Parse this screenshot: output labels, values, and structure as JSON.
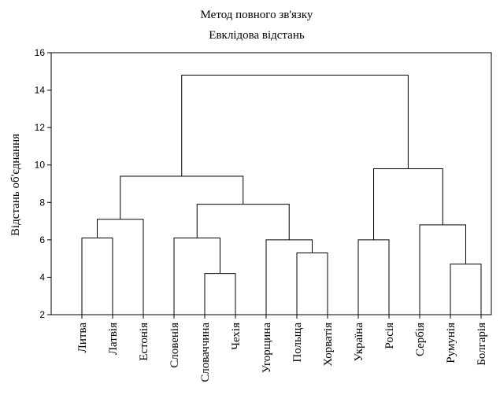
{
  "chart_data": {
    "type": "dendrogram",
    "title": "Метод повного зв'язку",
    "subtitle": "Евклідова відстань",
    "ylabel": "Відстань об'єднання",
    "xlabel": "",
    "ylim": [
      2,
      16
    ],
    "yticks": [
      "2",
      "4",
      "6",
      "8",
      "10",
      "12",
      "14",
      "16"
    ],
    "grid": false,
    "leaves": [
      "Литва",
      "Латвія",
      "Естонія",
      "Словенія",
      "Словаччина",
      "Чехія",
      "Угорщина",
      "Польща",
      "Хорватія",
      "Україна",
      "Росія",
      "Сербія",
      "Румунія",
      "Болгарія"
    ],
    "merges": [
      {
        "a": "L0",
        "b": "L1",
        "height": 6.1
      },
      {
        "a": "M0",
        "b": "L2",
        "height": 7.1
      },
      {
        "a": "L4",
        "b": "L5",
        "height": 4.2
      },
      {
        "a": "L3",
        "b": "M2",
        "height": 6.1
      },
      {
        "a": "L7",
        "b": "L8",
        "height": 5.3
      },
      {
        "a": "L6",
        "b": "M4",
        "height": 6.0
      },
      {
        "a": "M3",
        "b": "M5",
        "height": 7.9
      },
      {
        "a": "M1",
        "b": "M6",
        "height": 9.4
      },
      {
        "a": "L9",
        "b": "L10",
        "height": 6.0
      },
      {
        "a": "L12",
        "b": "L13",
        "height": 4.7
      },
      {
        "a": "L11",
        "b": "M9",
        "height": 6.8
      },
      {
        "a": "M8",
        "b": "M10",
        "height": 9.8
      },
      {
        "a": "M7",
        "b": "M11",
        "height": 14.8
      }
    ]
  }
}
